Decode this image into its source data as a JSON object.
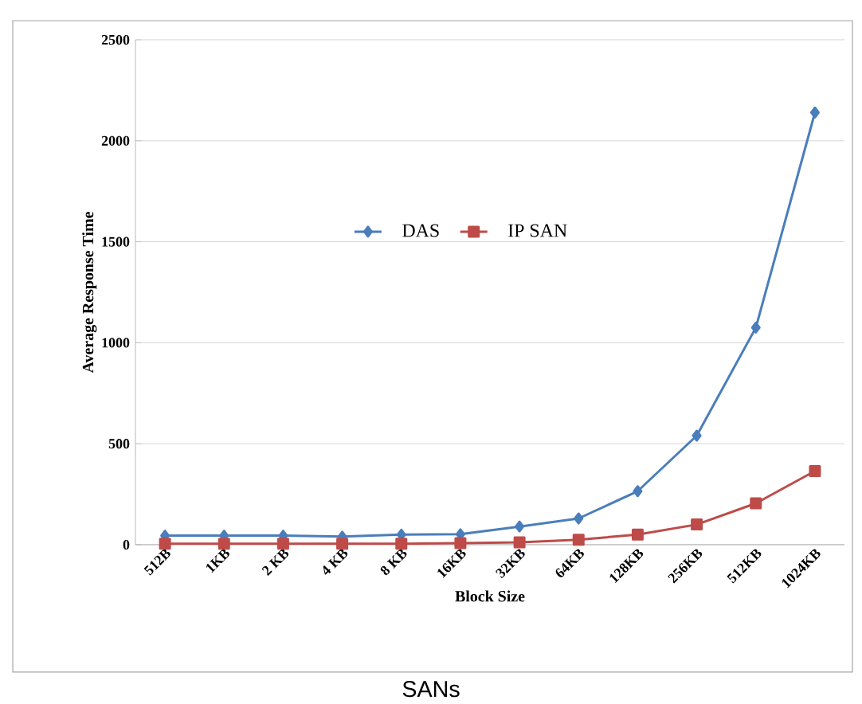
{
  "chart_data": {
    "type": "line",
    "xlabel": "Block Size",
    "ylabel": "Average Response Time",
    "categories": [
      "512B",
      "1KB",
      "2 KB",
      "4 KB",
      "8 KB",
      "16KB",
      "32KB",
      "64KB",
      "128KB",
      "256KB",
      "512KB",
      "1024KB"
    ],
    "series": [
      {
        "name": "DAS",
        "color": "#4a7ebb",
        "marker": "diamond",
        "values": [
          45,
          45,
          45,
          40,
          50,
          52,
          90,
          130,
          265,
          540,
          1075,
          2140
        ]
      },
      {
        "name": "IP SAN",
        "color": "#be4b48",
        "marker": "square",
        "values": [
          5,
          5,
          5,
          5,
          5,
          8,
          12,
          25,
          50,
          100,
          205,
          365
        ]
      }
    ],
    "ylim": [
      0,
      2500
    ],
    "yticks": [
      0,
      500,
      1000,
      1500,
      2000,
      2500
    ],
    "grid": "y",
    "legend": "center",
    "annotations": [
      "SANs"
    ]
  }
}
